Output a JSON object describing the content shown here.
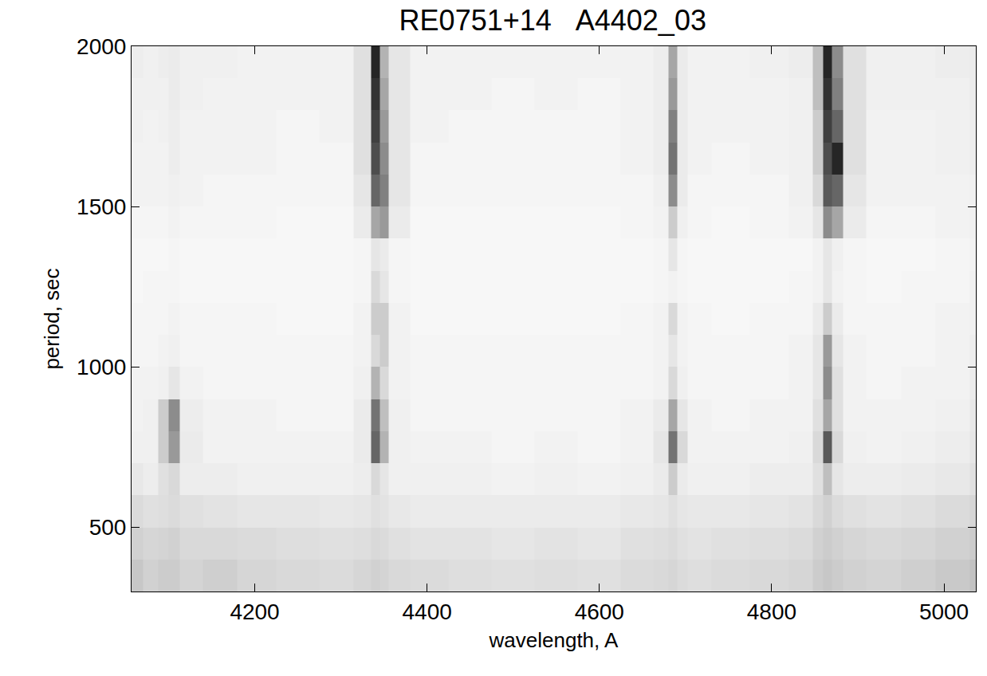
{
  "chart_data": {
    "type": "heatmap",
    "title": "RE0751+14   A4402_03",
    "x_label": "wavelength, A",
    "y_label": "period, sec",
    "xlim": [
      4057,
      5037
    ],
    "ylim": [
      300,
      2000
    ],
    "xticks": [
      4200,
      4400,
      4600,
      4800,
      5000
    ],
    "yticks": [
      500,
      1000,
      1500,
      2000
    ],
    "zlim": [
      0,
      1
    ],
    "x": [
      4060,
      4080,
      4095,
      4105,
      4120,
      4160,
      4200,
      4250,
      4300,
      4330,
      4340,
      4350,
      4360,
      4400,
      4450,
      4500,
      4550,
      4600,
      4650,
      4675,
      4685,
      4695,
      4710,
      4750,
      4800,
      4840,
      4855,
      4865,
      4875,
      4890,
      4930,
      4970,
      5010,
      5050
    ],
    "y": [
      350,
      450,
      550,
      650,
      750,
      850,
      950,
      1050,
      1150,
      1250,
      1350,
      1450,
      1550,
      1650,
      1750,
      1850,
      1950
    ],
    "z": [
      [
        0.22,
        0.18,
        0.2,
        0.2,
        0.17,
        0.19,
        0.16,
        0.15,
        0.14,
        0.16,
        0.18,
        0.17,
        0.15,
        0.14,
        0.13,
        0.12,
        0.13,
        0.12,
        0.14,
        0.15,
        0.16,
        0.14,
        0.13,
        0.14,
        0.15,
        0.16,
        0.2,
        0.22,
        0.2,
        0.18,
        0.17,
        0.19,
        0.21,
        0.24
      ],
      [
        0.18,
        0.16,
        0.17,
        0.18,
        0.15,
        0.15,
        0.14,
        0.13,
        0.12,
        0.13,
        0.15,
        0.14,
        0.12,
        0.11,
        0.11,
        0.1,
        0.11,
        0.1,
        0.12,
        0.13,
        0.14,
        0.12,
        0.11,
        0.12,
        0.13,
        0.14,
        0.18,
        0.2,
        0.18,
        0.16,
        0.15,
        0.16,
        0.18,
        0.2
      ],
      [
        0.14,
        0.12,
        0.13,
        0.14,
        0.12,
        0.11,
        0.1,
        0.1,
        0.09,
        0.1,
        0.12,
        0.11,
        0.09,
        0.08,
        0.08,
        0.08,
        0.08,
        0.08,
        0.09,
        0.1,
        0.12,
        0.1,
        0.09,
        0.09,
        0.1,
        0.11,
        0.15,
        0.18,
        0.14,
        0.12,
        0.11,
        0.12,
        0.14,
        0.16
      ],
      [
        0.09,
        0.07,
        0.12,
        0.15,
        0.07,
        0.07,
        0.06,
        0.06,
        0.06,
        0.07,
        0.15,
        0.1,
        0.06,
        0.06,
        0.06,
        0.05,
        0.06,
        0.05,
        0.06,
        0.08,
        0.2,
        0.08,
        0.06,
        0.06,
        0.07,
        0.07,
        0.12,
        0.25,
        0.1,
        0.07,
        0.07,
        0.08,
        0.09,
        0.12
      ],
      [
        0.06,
        0.06,
        0.2,
        0.4,
        0.08,
        0.05,
        0.05,
        0.05,
        0.05,
        0.08,
        0.6,
        0.3,
        0.06,
        0.05,
        0.05,
        0.04,
        0.05,
        0.04,
        0.05,
        0.1,
        0.55,
        0.15,
        0.05,
        0.05,
        0.05,
        0.06,
        0.15,
        0.65,
        0.15,
        0.06,
        0.05,
        0.06,
        0.07,
        0.1
      ],
      [
        0.05,
        0.06,
        0.2,
        0.45,
        0.07,
        0.05,
        0.05,
        0.04,
        0.04,
        0.08,
        0.55,
        0.25,
        0.06,
        0.04,
        0.04,
        0.04,
        0.04,
        0.04,
        0.05,
        0.08,
        0.35,
        0.1,
        0.05,
        0.04,
        0.05,
        0.05,
        0.12,
        0.35,
        0.12,
        0.05,
        0.05,
        0.05,
        0.06,
        0.09
      ],
      [
        0.05,
        0.05,
        0.06,
        0.1,
        0.05,
        0.04,
        0.04,
        0.04,
        0.04,
        0.06,
        0.3,
        0.15,
        0.05,
        0.04,
        0.04,
        0.04,
        0.04,
        0.04,
        0.04,
        0.05,
        0.15,
        0.06,
        0.04,
        0.04,
        0.04,
        0.05,
        0.1,
        0.45,
        0.12,
        0.05,
        0.04,
        0.05,
        0.05,
        0.08
      ],
      [
        0.04,
        0.04,
        0.05,
        0.06,
        0.04,
        0.04,
        0.04,
        0.04,
        0.04,
        0.05,
        0.15,
        0.2,
        0.05,
        0.04,
        0.04,
        0.04,
        0.04,
        0.04,
        0.04,
        0.05,
        0.1,
        0.05,
        0.04,
        0.04,
        0.04,
        0.05,
        0.1,
        0.4,
        0.1,
        0.05,
        0.04,
        0.04,
        0.05,
        0.07
      ],
      [
        0.04,
        0.04,
        0.04,
        0.05,
        0.04,
        0.04,
        0.04,
        0.03,
        0.03,
        0.05,
        0.2,
        0.2,
        0.05,
        0.03,
        0.03,
        0.03,
        0.03,
        0.03,
        0.04,
        0.05,
        0.15,
        0.05,
        0.04,
        0.03,
        0.04,
        0.04,
        0.08,
        0.2,
        0.08,
        0.04,
        0.04,
        0.04,
        0.05,
        0.06
      ],
      [
        0.03,
        0.04,
        0.04,
        0.04,
        0.03,
        0.03,
        0.03,
        0.03,
        0.03,
        0.04,
        0.15,
        0.1,
        0.04,
        0.03,
        0.03,
        0.03,
        0.03,
        0.03,
        0.03,
        0.04,
        0.05,
        0.04,
        0.03,
        0.03,
        0.03,
        0.04,
        0.05,
        0.1,
        0.05,
        0.04,
        0.03,
        0.04,
        0.04,
        0.06
      ],
      [
        0.03,
        0.03,
        0.03,
        0.04,
        0.03,
        0.03,
        0.03,
        0.03,
        0.03,
        0.04,
        0.1,
        0.08,
        0.04,
        0.03,
        0.03,
        0.03,
        0.03,
        0.03,
        0.03,
        0.04,
        0.1,
        0.04,
        0.03,
        0.03,
        0.03,
        0.03,
        0.05,
        0.1,
        0.06,
        0.04,
        0.03,
        0.03,
        0.04,
        0.05
      ],
      [
        0.04,
        0.04,
        0.04,
        0.05,
        0.04,
        0.04,
        0.04,
        0.03,
        0.03,
        0.08,
        0.35,
        0.4,
        0.08,
        0.03,
        0.03,
        0.03,
        0.03,
        0.03,
        0.04,
        0.05,
        0.2,
        0.06,
        0.04,
        0.03,
        0.04,
        0.05,
        0.1,
        0.45,
        0.35,
        0.08,
        0.04,
        0.04,
        0.05,
        0.06
      ],
      [
        0.05,
        0.05,
        0.05,
        0.06,
        0.05,
        0.04,
        0.04,
        0.04,
        0.04,
        0.1,
        0.6,
        0.5,
        0.1,
        0.04,
        0.04,
        0.04,
        0.04,
        0.04,
        0.04,
        0.06,
        0.45,
        0.08,
        0.04,
        0.04,
        0.04,
        0.06,
        0.15,
        0.65,
        0.6,
        0.1,
        0.05,
        0.05,
        0.05,
        0.06
      ],
      [
        0.05,
        0.05,
        0.05,
        0.07,
        0.05,
        0.05,
        0.05,
        0.04,
        0.04,
        0.12,
        0.7,
        0.45,
        0.1,
        0.04,
        0.04,
        0.04,
        0.04,
        0.04,
        0.05,
        0.07,
        0.55,
        0.08,
        0.05,
        0.04,
        0.05,
        0.06,
        0.2,
        0.7,
        0.85,
        0.12,
        0.05,
        0.05,
        0.06,
        0.07
      ],
      [
        0.06,
        0.05,
        0.06,
        0.07,
        0.05,
        0.05,
        0.05,
        0.04,
        0.05,
        0.12,
        0.75,
        0.4,
        0.1,
        0.05,
        0.04,
        0.04,
        0.04,
        0.04,
        0.05,
        0.07,
        0.5,
        0.08,
        0.05,
        0.05,
        0.05,
        0.06,
        0.2,
        0.75,
        0.6,
        0.12,
        0.05,
        0.05,
        0.06,
        0.07
      ],
      [
        0.06,
        0.06,
        0.06,
        0.08,
        0.06,
        0.05,
        0.05,
        0.05,
        0.05,
        0.12,
        0.8,
        0.35,
        0.1,
        0.05,
        0.05,
        0.04,
        0.05,
        0.04,
        0.05,
        0.07,
        0.4,
        0.08,
        0.05,
        0.05,
        0.05,
        0.06,
        0.25,
        0.8,
        0.5,
        0.12,
        0.06,
        0.06,
        0.06,
        0.08
      ],
      [
        0.07,
        0.06,
        0.07,
        0.08,
        0.06,
        0.06,
        0.05,
        0.05,
        0.05,
        0.12,
        0.85,
        0.3,
        0.1,
        0.05,
        0.05,
        0.05,
        0.05,
        0.05,
        0.05,
        0.07,
        0.35,
        0.08,
        0.05,
        0.05,
        0.06,
        0.07,
        0.25,
        0.85,
        0.45,
        0.12,
        0.06,
        0.06,
        0.07,
        0.08
      ]
    ]
  }
}
